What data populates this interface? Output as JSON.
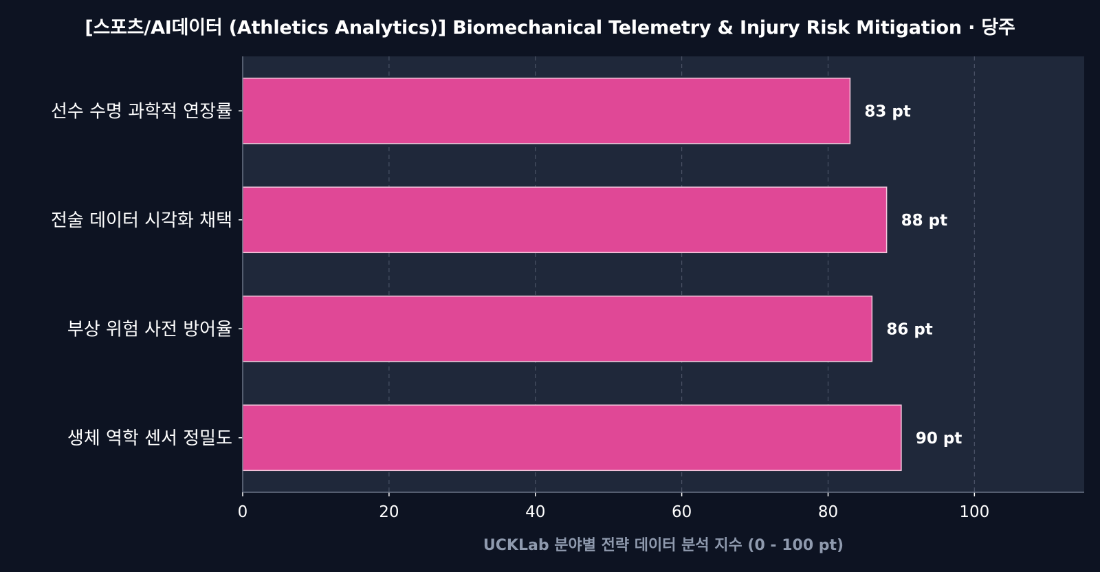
{
  "chart_data": {
    "type": "bar",
    "orientation": "horizontal",
    "title": "[스포츠/AI데이터 (Athletics Analytics)] Biomechanical Telemetry & Injury Risk Mitigation · 당주",
    "xlabel": "UCKLab 분야별 전략 데이터 분석 지수 (0 - 100 pt)",
    "ylabel": "",
    "categories": [
      "선수 수명 과학적 연장률",
      "전술 데이터 시각화 채택",
      "부상 위험 사전 방어율",
      "생체 역학 센서 정밀도"
    ],
    "values": [
      83,
      88,
      86,
      90
    ],
    "value_labels": [
      "83 pt",
      "88 pt",
      "86 pt",
      "90 pt"
    ],
    "xlim": [
      0,
      115
    ],
    "xticks": [
      0,
      20,
      40,
      60,
      80,
      100
    ],
    "grid": "vertical dashed",
    "legend": "none",
    "colors": {
      "background": "#0d1322",
      "plot_background": "#1f283a",
      "bar_fill": "#e04896",
      "bar_edge": "#f3c9dd",
      "grid": "#4a5366",
      "axis_title": "#8f9aae"
    }
  }
}
